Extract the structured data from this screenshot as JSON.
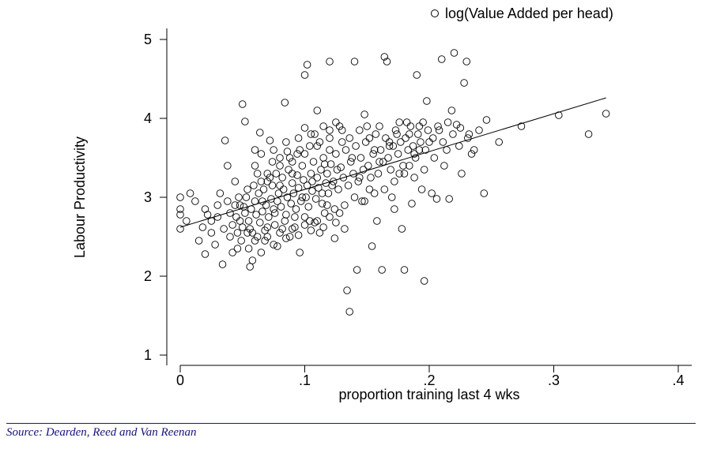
{
  "chart_data": {
    "type": "scatter",
    "title": "",
    "xlabel": "proportion training last 4 wks",
    "ylabel": "Labour Productivity",
    "xlim": [
      0,
      0.4
    ],
    "ylim": [
      1,
      5
    ],
    "x_ticks": [
      0,
      0.1,
      0.2,
      0.3,
      0.4
    ],
    "x_tick_labels": [
      "0",
      ".1",
      ".2",
      ".3",
      ".4"
    ],
    "y_ticks": [
      1,
      2,
      3,
      4,
      5
    ],
    "y_tick_labels": [
      "1",
      "2",
      "3",
      "4",
      "5"
    ],
    "grid": false,
    "legend_position": "top-right",
    "series": [
      {
        "name": "log(Value Added per head)",
        "marker": "hollow-circle",
        "points": [
          [
            0.0,
            3.0
          ],
          [
            0.0,
            2.78
          ],
          [
            0.0,
            2.85
          ],
          [
            0.0,
            2.6
          ],
          [
            0.005,
            2.7
          ],
          [
            0.008,
            3.05
          ],
          [
            0.012,
            2.95
          ],
          [
            0.015,
            2.45
          ],
          [
            0.018,
            2.62
          ],
          [
            0.02,
            2.28
          ],
          [
            0.022,
            2.78
          ],
          [
            0.025,
            2.55
          ],
          [
            0.028,
            2.4
          ],
          [
            0.03,
            2.9
          ],
          [
            0.032,
            3.05
          ],
          [
            0.034,
            2.15
          ],
          [
            0.036,
            3.72
          ],
          [
            0.038,
            3.4
          ],
          [
            0.04,
            2.5
          ],
          [
            0.042,
            2.3
          ],
          [
            0.044,
            3.2
          ],
          [
            0.046,
            2.35
          ],
          [
            0.048,
            2.7
          ],
          [
            0.05,
            4.18
          ],
          [
            0.052,
            3.96
          ],
          [
            0.054,
            2.55
          ],
          [
            0.056,
            2.12
          ],
          [
            0.058,
            2.2
          ],
          [
            0.06,
            3.6
          ],
          [
            0.062,
            3.3
          ],
          [
            0.064,
            3.82
          ],
          [
            0.066,
            2.95
          ],
          [
            0.068,
            2.45
          ],
          [
            0.07,
            2.62
          ],
          [
            0.072,
            3.72
          ],
          [
            0.074,
            3.45
          ],
          [
            0.076,
            2.8
          ],
          [
            0.078,
            2.38
          ],
          [
            0.08,
            3.15
          ],
          [
            0.082,
            2.6
          ],
          [
            0.084,
            4.2
          ],
          [
            0.086,
            3.58
          ],
          [
            0.088,
            2.5
          ],
          [
            0.09,
            3.3
          ],
          [
            0.092,
            2.75
          ],
          [
            0.094,
            3.55
          ],
          [
            0.096,
            2.3
          ],
          [
            0.098,
            3.0
          ],
          [
            0.1,
            4.55
          ],
          [
            0.1,
            3.88
          ],
          [
            0.102,
            4.68
          ],
          [
            0.104,
            2.7
          ],
          [
            0.106,
            3.2
          ],
          [
            0.108,
            3.8
          ],
          [
            0.11,
            4.1
          ],
          [
            0.112,
            2.55
          ],
          [
            0.114,
            3.05
          ],
          [
            0.116,
            3.42
          ],
          [
            0.118,
            2.9
          ],
          [
            0.12,
            4.72
          ],
          [
            0.12,
            3.6
          ],
          [
            0.122,
            3.15
          ],
          [
            0.124,
            2.48
          ],
          [
            0.126,
            3.35
          ],
          [
            0.128,
            2.8
          ],
          [
            0.13,
            3.7
          ],
          [
            0.132,
            2.6
          ],
          [
            0.134,
            1.82
          ],
          [
            0.136,
            1.55
          ],
          [
            0.138,
            3.5
          ],
          [
            0.14,
            4.72
          ],
          [
            0.142,
            2.08
          ],
          [
            0.144,
            3.25
          ],
          [
            0.146,
            2.95
          ],
          [
            0.148,
            4.05
          ],
          [
            0.15,
            3.9
          ],
          [
            0.152,
            3.1
          ],
          [
            0.154,
            2.38
          ],
          [
            0.156,
            3.6
          ],
          [
            0.158,
            2.7
          ],
          [
            0.16,
            3.45
          ],
          [
            0.162,
            2.08
          ],
          [
            0.164,
            4.78
          ],
          [
            0.166,
            4.72
          ],
          [
            0.168,
            3.65
          ],
          [
            0.17,
            3.0
          ],
          [
            0.172,
            2.85
          ],
          [
            0.174,
            3.8
          ],
          [
            0.176,
            3.3
          ],
          [
            0.178,
            2.6
          ],
          [
            0.18,
            2.08
          ],
          [
            0.182,
            3.95
          ],
          [
            0.184,
            3.4
          ],
          [
            0.186,
            2.92
          ],
          [
            0.188,
            3.55
          ],
          [
            0.19,
            4.55
          ],
          [
            0.192,
            3.6
          ],
          [
            0.194,
            3.1
          ],
          [
            0.196,
            1.94
          ],
          [
            0.198,
            4.22
          ],
          [
            0.2,
            3.7
          ],
          [
            0.202,
            3.05
          ],
          [
            0.204,
            3.5
          ],
          [
            0.206,
            2.98
          ],
          [
            0.208,
            3.85
          ],
          [
            0.21,
            4.75
          ],
          [
            0.212,
            3.4
          ],
          [
            0.214,
            3.6
          ],
          [
            0.216,
            2.98
          ],
          [
            0.218,
            4.1
          ],
          [
            0.22,
            4.83
          ],
          [
            0.222,
            3.92
          ],
          [
            0.224,
            3.65
          ],
          [
            0.226,
            3.3
          ],
          [
            0.228,
            4.45
          ],
          [
            0.23,
            4.72
          ],
          [
            0.232,
            3.8
          ],
          [
            0.234,
            3.55
          ],
          [
            0.236,
            3.6
          ],
          [
            0.24,
            3.85
          ],
          [
            0.244,
            3.05
          ],
          [
            0.246,
            3.98
          ],
          [
            0.256,
            3.7
          ],
          [
            0.274,
            3.9
          ],
          [
            0.304,
            4.04
          ],
          [
            0.328,
            3.8
          ],
          [
            0.342,
            4.06
          ],
          [
            0.045,
            2.75
          ],
          [
            0.048,
            2.9
          ],
          [
            0.05,
            2.62
          ],
          [
            0.052,
            2.8
          ],
          [
            0.053,
            3.0
          ],
          [
            0.055,
            2.7
          ],
          [
            0.057,
            2.85
          ],
          [
            0.058,
            2.55
          ],
          [
            0.06,
            2.95
          ],
          [
            0.061,
            2.78
          ],
          [
            0.063,
            3.05
          ],
          [
            0.064,
            2.68
          ],
          [
            0.066,
            2.82
          ],
          [
            0.067,
            3.1
          ],
          [
            0.069,
            2.9
          ],
          [
            0.07,
            3.2
          ],
          [
            0.071,
            2.75
          ],
          [
            0.073,
            2.98
          ],
          [
            0.074,
            3.15
          ],
          [
            0.075,
            2.85
          ],
          [
            0.077,
            3.3
          ],
          [
            0.078,
            2.95
          ],
          [
            0.079,
            3.05
          ],
          [
            0.081,
            2.88
          ],
          [
            0.082,
            3.25
          ],
          [
            0.083,
            3.1
          ],
          [
            0.085,
            2.78
          ],
          [
            0.086,
            3.0
          ],
          [
            0.087,
            3.35
          ],
          [
            0.089,
            2.92
          ],
          [
            0.09,
            3.18
          ],
          [
            0.091,
            3.05
          ],
          [
            0.093,
            2.85
          ],
          [
            0.094,
            3.28
          ],
          [
            0.095,
            3.12
          ],
          [
            0.097,
            2.95
          ],
          [
            0.098,
            3.4
          ],
          [
            0.099,
            3.22
          ],
          [
            0.101,
            3.0
          ],
          [
            0.102,
            3.15
          ],
          [
            0.103,
            2.88
          ],
          [
            0.105,
            3.3
          ],
          [
            0.106,
            3.08
          ],
          [
            0.107,
            3.45
          ],
          [
            0.109,
            2.98
          ],
          [
            0.11,
            3.25
          ],
          [
            0.111,
            3.12
          ],
          [
            0.113,
            3.35
          ],
          [
            0.114,
            2.92
          ],
          [
            0.115,
            3.5
          ],
          [
            0.117,
            3.18
          ],
          [
            0.118,
            3.3
          ],
          [
            0.119,
            3.05
          ],
          [
            0.121,
            3.42
          ],
          [
            0.123,
            3.2
          ],
          [
            0.125,
            3.55
          ],
          [
            0.127,
            3.1
          ],
          [
            0.129,
            3.38
          ],
          [
            0.131,
            3.25
          ],
          [
            0.133,
            3.6
          ],
          [
            0.135,
            3.15
          ],
          [
            0.137,
            3.45
          ],
          [
            0.139,
            3.3
          ],
          [
            0.141,
            3.65
          ],
          [
            0.143,
            3.2
          ],
          [
            0.145,
            3.5
          ],
          [
            0.147,
            3.35
          ],
          [
            0.149,
            3.7
          ],
          [
            0.151,
            3.4
          ],
          [
            0.153,
            3.25
          ],
          [
            0.155,
            3.55
          ],
          [
            0.157,
            3.8
          ],
          [
            0.159,
            3.3
          ],
          [
            0.161,
            3.6
          ],
          [
            0.163,
            3.45
          ],
          [
            0.165,
            3.75
          ],
          [
            0.167,
            3.5
          ],
          [
            0.169,
            3.35
          ],
          [
            0.171,
            3.65
          ],
          [
            0.173,
            3.85
          ],
          [
            0.175,
            3.55
          ],
          [
            0.177,
            3.7
          ],
          [
            0.179,
            3.4
          ],
          [
            0.181,
            3.75
          ],
          [
            0.183,
            3.6
          ],
          [
            0.185,
            3.9
          ],
          [
            0.187,
            3.65
          ],
          [
            0.189,
            3.5
          ],
          [
            0.191,
            3.8
          ],
          [
            0.193,
            3.7
          ],
          [
            0.195,
            3.95
          ],
          [
            0.197,
            3.6
          ],
          [
            0.199,
            3.85
          ],
          [
            0.203,
            3.75
          ],
          [
            0.207,
            3.9
          ],
          [
            0.211,
            3.7
          ],
          [
            0.215,
            3.95
          ],
          [
            0.219,
            3.8
          ],
          [
            0.225,
            3.88
          ],
          [
            0.231,
            3.75
          ],
          [
            0.02,
            2.85
          ],
          [
            0.025,
            2.7
          ],
          [
            0.03,
            2.75
          ],
          [
            0.035,
            2.6
          ],
          [
            0.038,
            2.95
          ],
          [
            0.04,
            2.8
          ],
          [
            0.042,
            2.65
          ],
          [
            0.044,
            2.9
          ],
          [
            0.046,
            2.55
          ],
          [
            0.047,
            3.0
          ],
          [
            0.049,
            2.45
          ],
          [
            0.051,
            2.88
          ],
          [
            0.054,
            3.1
          ],
          [
            0.056,
            2.6
          ],
          [
            0.059,
            3.15
          ],
          [
            0.062,
            2.5
          ],
          [
            0.065,
            3.2
          ],
          [
            0.068,
            2.58
          ],
          [
            0.072,
            3.25
          ],
          [
            0.076,
            2.65
          ],
          [
            0.08,
            3.4
          ],
          [
            0.084,
            2.7
          ],
          [
            0.088,
            3.5
          ],
          [
            0.092,
            2.62
          ],
          [
            0.096,
            3.6
          ],
          [
            0.1,
            2.75
          ],
          [
            0.104,
            3.65
          ],
          [
            0.108,
            2.68
          ],
          [
            0.112,
            3.7
          ],
          [
            0.116,
            2.8
          ],
          [
            0.12,
            3.85
          ],
          [
            0.124,
            2.85
          ],
          [
            0.128,
            3.9
          ],
          [
            0.132,
            2.9
          ],
          [
            0.136,
            3.75
          ],
          [
            0.14,
            3.0
          ],
          [
            0.144,
            3.85
          ],
          [
            0.148,
            2.95
          ],
          [
            0.152,
            3.75
          ],
          [
            0.156,
            3.05
          ],
          [
            0.16,
            3.9
          ],
          [
            0.164,
            3.1
          ],
          [
            0.168,
            3.7
          ],
          [
            0.172,
            3.2
          ],
          [
            0.176,
            3.95
          ],
          [
            0.18,
            3.3
          ],
          [
            0.184,
            3.8
          ],
          [
            0.188,
            3.25
          ],
          [
            0.192,
            3.9
          ],
          [
            0.196,
            3.35
          ],
          [
            0.06,
            3.4
          ],
          [
            0.065,
            3.55
          ],
          [
            0.07,
            3.3
          ],
          [
            0.075,
            3.6
          ],
          [
            0.08,
            3.5
          ],
          [
            0.085,
            3.7
          ],
          [
            0.09,
            3.45
          ],
          [
            0.095,
            3.75
          ],
          [
            0.1,
            3.55
          ],
          [
            0.105,
            3.8
          ],
          [
            0.11,
            3.65
          ],
          [
            0.115,
            3.9
          ],
          [
            0.12,
            3.75
          ],
          [
            0.125,
            3.95
          ],
          [
            0.13,
            3.85
          ],
          [
            0.055,
            2.35
          ],
          [
            0.06,
            2.45
          ],
          [
            0.065,
            2.3
          ],
          [
            0.07,
            2.5
          ],
          [
            0.075,
            2.4
          ],
          [
            0.08,
            2.55
          ],
          [
            0.085,
            2.48
          ],
          [
            0.09,
            2.6
          ],
          [
            0.095,
            2.52
          ],
          [
            0.1,
            2.65
          ],
          [
            0.105,
            2.58
          ],
          [
            0.11,
            2.7
          ],
          [
            0.115,
            2.62
          ],
          [
            0.12,
            2.75
          ],
          [
            0.125,
            2.68
          ]
        ],
        "fit_line": {
          "from": [
            0.0,
            2.62
          ],
          "to": [
            0.342,
            4.26
          ]
        }
      }
    ]
  },
  "legend": {
    "label": "log(Value Added per head)"
  },
  "source": "Source: Dearden, Reed and Van Reenan"
}
